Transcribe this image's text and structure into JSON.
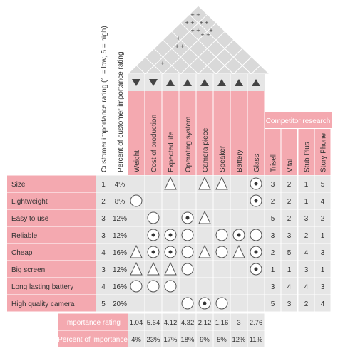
{
  "header": {
    "customer_rating_label": "Customer importance  rating (1 = low, 5 = high)",
    "percent_label": "Percent of customer importance rating",
    "competitor_research": "Competitor research"
  },
  "colors": {
    "pink": "#f4a9b0",
    "pink_light": "#f8c9cd",
    "cell": "#e6e6e6",
    "roof": "#d9d9d9",
    "text": "#333333"
  },
  "roof_marks": [
    "+ +",
    "+ +",
    "+   +",
    "+ +",
    "+",
    "+",
    "+ +",
    "+ +",
    "+"
  ],
  "technical": [
    {
      "label": "Weight",
      "dir": "down"
    },
    {
      "label": "Cost of production",
      "dir": "down"
    },
    {
      "label": "Expected life",
      "dir": "up"
    },
    {
      "label": "Operating system",
      "dir": "up"
    },
    {
      "label": "Camera piece",
      "dir": "up"
    },
    {
      "label": "Speaker",
      "dir": "up"
    },
    {
      "label": "Battery",
      "dir": "up"
    },
    {
      "label": "Glass",
      "dir": "up"
    }
  ],
  "competitors": [
    "Trisell",
    "Vital",
    "Stub Plus",
    "Story Phone"
  ],
  "requirements": [
    {
      "label": "Size",
      "rating": "1",
      "percent": "4%",
      "rel": [
        "",
        "",
        "triangle",
        "",
        "triangle",
        "triangle",
        "",
        "dot"
      ],
      "comp": [
        "3",
        "2",
        "1",
        "5"
      ]
    },
    {
      "label": "Lightweight",
      "rating": "2",
      "percent": "8%",
      "rel": [
        "circle",
        "",
        "",
        "",
        "",
        "",
        "",
        "dot"
      ],
      "comp": [
        "2",
        "2",
        "1",
        "4"
      ]
    },
    {
      "label": "Easy to use",
      "rating": "3",
      "percent": "12%",
      "rel": [
        "",
        "circle",
        "",
        "dot",
        "triangle",
        "",
        "",
        ""
      ],
      "comp": [
        "5",
        "2",
        "3",
        "2"
      ]
    },
    {
      "label": "Reliable",
      "rating": "3",
      "percent": "12%",
      "rel": [
        "",
        "dot",
        "dot",
        "circle",
        "",
        "circle",
        "dot",
        "circle"
      ],
      "comp": [
        "3",
        "3",
        "2",
        "1"
      ]
    },
    {
      "label": "Cheap",
      "rating": "4",
      "percent": "16%",
      "rel": [
        "triangle",
        "dot",
        "dot",
        "circle",
        "triangle",
        "circle",
        "triangle",
        "dot"
      ],
      "comp": [
        "2",
        "5",
        "4",
        "3"
      ]
    },
    {
      "label": "Big screen",
      "rating": "3",
      "percent": "12%",
      "rel": [
        "triangle",
        "triangle",
        "triangle",
        "circle",
        "",
        "",
        "",
        "dot"
      ],
      "comp": [
        "1",
        "1",
        "3",
        "1"
      ]
    },
    {
      "label": "Long lasting battery",
      "rating": "4",
      "percent": "16%",
      "rel": [
        "circle",
        "circle",
        "circle",
        "",
        "",
        "",
        "",
        ""
      ],
      "comp": [
        "3",
        "4",
        "4",
        "3"
      ]
    },
    {
      "label": "High quality camera",
      "rating": "5",
      "percent": "20%",
      "rel": [
        "",
        "",
        "",
        "circle",
        "dot",
        "circle",
        "",
        ""
      ],
      "comp": [
        "5",
        "3",
        "2",
        "4"
      ]
    }
  ],
  "importance_rating": {
    "label": "Importance rating",
    "values": [
      "1.04",
      "5.64",
      "4.12",
      "4.32",
      "2.12",
      "1.16",
      "3",
      "2.76"
    ]
  },
  "percent_importance": {
    "label": "Percent of importance",
    "values": [
      "4%",
      "23%",
      "17%",
      "18%",
      "9%",
      "5%",
      "12%",
      "11%"
    ]
  }
}
